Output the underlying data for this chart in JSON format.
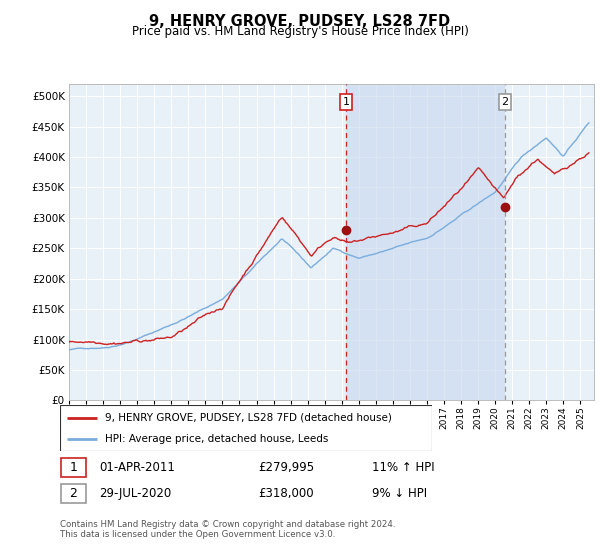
{
  "title": "9, HENRY GROVE, PUDSEY, LS28 7FD",
  "subtitle": "Price paid vs. HM Land Registry's House Price Index (HPI)",
  "ytick_values": [
    0,
    50000,
    100000,
    150000,
    200000,
    250000,
    300000,
    350000,
    400000,
    450000,
    500000
  ],
  "ylim": [
    0,
    520000
  ],
  "xlim_start": 1995.0,
  "xlim_end": 2025.8,
  "hpi_color": "#7aacdc",
  "price_color": "#cc2222",
  "bg_color": "#e8f0f8",
  "marker1_date": 2011.25,
  "marker1_price": 279995,
  "marker2_date": 2020.57,
  "marker2_price": 318000,
  "vline1_color": "#cc2222",
  "vline2_color": "#999999",
  "legend_label_price": "9, HENRY GROVE, PUDSEY, LS28 7FD (detached house)",
  "legend_label_hpi": "HPI: Average price, detached house, Leeds",
  "table_row1": [
    "1",
    "01-APR-2011",
    "£279,995",
    "11% ↑ HPI"
  ],
  "table_row2": [
    "2",
    "29-JUL-2020",
    "£318,000",
    "9% ↓ HPI"
  ],
  "footnote": "Contains HM Land Registry data © Crown copyright and database right 2024.\nThis data is licensed under the Open Government Licence v3.0."
}
